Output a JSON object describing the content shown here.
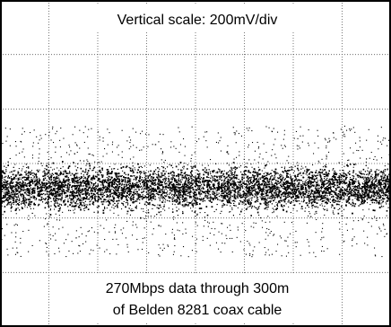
{
  "chart_data": {
    "type": "scatter",
    "title": "",
    "xlabel": "",
    "ylabel": "",
    "grid": true,
    "grid_divisions": {
      "horizontal": 8,
      "vertical": 6
    },
    "vertical_scale_mV_per_div": 200,
    "signal": {
      "description": "eye pattern fully closed; noise band",
      "dense_band_divisions": [
        -1.1,
        0.2
      ],
      "sparse_band_divisions": [
        -1.7,
        0.7
      ]
    },
    "annotations": {
      "top": "Vertical scale: 200mV/div",
      "bottom_line1": "270Mbps data through 300m",
      "bottom_line2": "of Belden 8281 coax cable"
    }
  }
}
